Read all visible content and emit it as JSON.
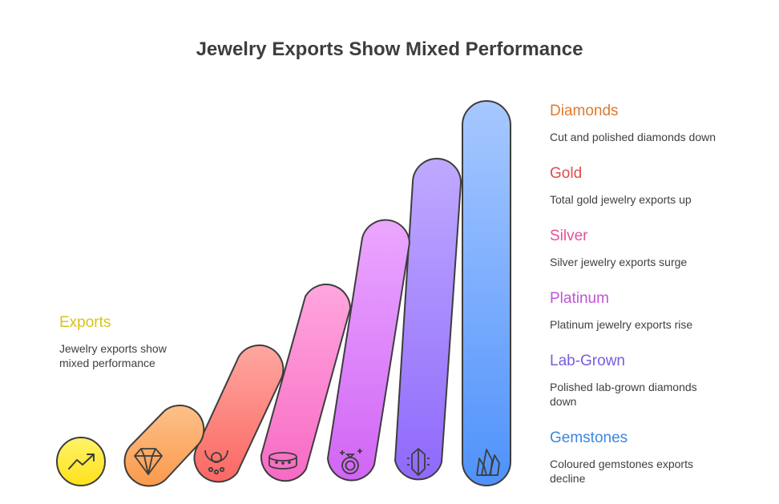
{
  "title": "Jewelry Exports Show Mixed Performance",
  "left_label": {
    "title": "Exports",
    "description": "Jewelry exports show mixed performance",
    "color": "#d9c21d"
  },
  "items": [
    {
      "title": "Diamonds",
      "description": "Cut and polished diamonds down",
      "color": "#e07a2e",
      "icon": "diamond-icon"
    },
    {
      "title": "Gold",
      "description": "Total gold jewelry exports up",
      "color": "#e04b4b",
      "icon": "necklace-icon"
    },
    {
      "title": "Silver",
      "description": "Silver jewelry exports surge",
      "color": "#e0529b",
      "icon": "bracelet-icon"
    },
    {
      "title": "Platinum",
      "description": "Platinum jewelry exports rise",
      "color": "#c054d6",
      "icon": "ring-icon"
    },
    {
      "title": "Lab-Grown",
      "description": "Polished lab-grown diamonds down",
      "color": "#7b5ce0",
      "icon": "crystal-icon"
    },
    {
      "title": "Gemstones",
      "description": "Coloured gemstones exports decline",
      "color": "#3d86e0",
      "icon": "gemstones-icon"
    }
  ],
  "start_icon": "trending-up-icon"
}
